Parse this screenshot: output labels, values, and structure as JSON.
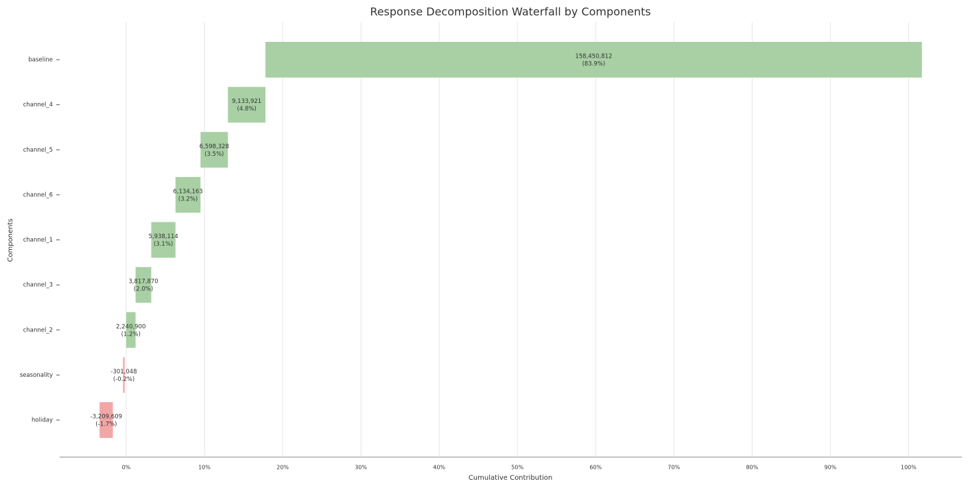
{
  "chart_data": {
    "type": "waterfall",
    "title": "Response Decomposition Waterfall by Components",
    "x_label": "Cumulative Contribution",
    "y_label": "Components",
    "categories": [
      "baseline",
      "channel_4",
      "channel_5",
      "channel_6",
      "channel_1",
      "channel_3",
      "channel_2",
      "seasonality",
      "holiday"
    ],
    "values": [
      83.9,
      4.8,
      3.5,
      3.2,
      3.1,
      2.0,
      1.2,
      -0.2,
      -1.7
    ],
    "value_labels": [
      "(83.9%)",
      "(4.8%)",
      "(3.5%)",
      "(3.2%)",
      "(3.1%)",
      "(2.0%)",
      "(1.2%)",
      "(-0.2%)",
      "(-1.7%)"
    ],
    "response_labels": [
      "158,450,812",
      "9,133,921",
      "6,598,328",
      "6,134,163",
      "5,938,114",
      "3,817,870",
      "2,240,900",
      "-301,048",
      "-3,209,609"
    ],
    "positive_color": "#a8d0a4",
    "negative_color": "#f2a6a6",
    "xlim": [
      -8.5,
      106.8
    ],
    "xticks": [
      {
        "value": 0,
        "label": "0%"
      },
      {
        "value": 10,
        "label": "10%"
      },
      {
        "value": 20,
        "label": "20%"
      },
      {
        "value": 30,
        "label": "30%"
      },
      {
        "value": 40,
        "label": "40%"
      },
      {
        "value": 50,
        "label": "50%"
      },
      {
        "value": 60,
        "label": "60%"
      },
      {
        "value": 70,
        "label": "70%"
      },
      {
        "value": 80,
        "label": "80%"
      },
      {
        "value": 90,
        "label": "90%"
      },
      {
        "value": 100,
        "label": "100%"
      }
    ],
    "grid": true
  }
}
